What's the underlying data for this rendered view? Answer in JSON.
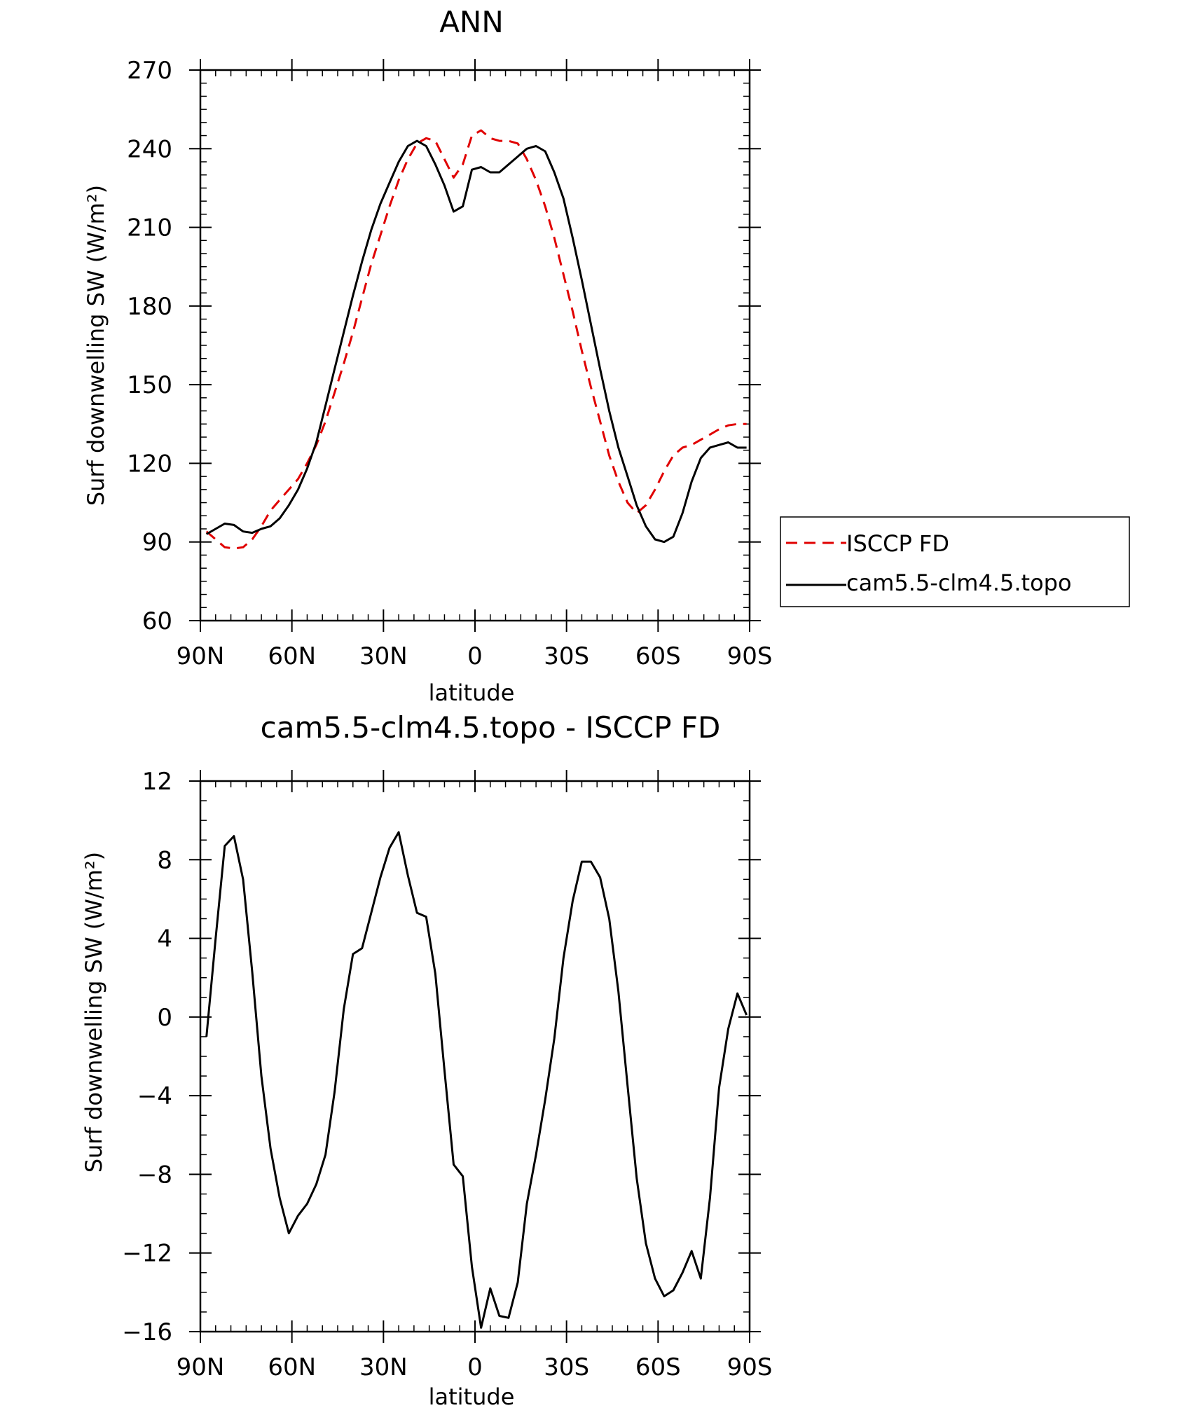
{
  "chart_data": [
    {
      "type": "line",
      "title": "ANN",
      "xlabel": "latitude",
      "ylabel": "Surf downwelling SW (W/m²)",
      "xlim": [
        90,
        -90
      ],
      "ylim": [
        60,
        270
      ],
      "xticks": [
        90,
        60,
        30,
        0,
        -30,
        -60,
        -90
      ],
      "xtick_labels": [
        "90N",
        "60N",
        "30N",
        "0",
        "30S",
        "60S",
        "90S"
      ],
      "yticks": [
        60,
        90,
        120,
        150,
        180,
        210,
        240,
        270
      ],
      "ytick_labels": [
        "60",
        "90",
        "120",
        "150",
        "180",
        "210",
        "240",
        "270"
      ],
      "legend_position": "right",
      "series": [
        {
          "name": "ISCCP FD",
          "color": "#e00000",
          "dash": "dashed",
          "x": [
            88,
            85,
            82,
            79,
            76,
            73,
            70,
            67,
            64,
            61,
            58,
            55,
            52,
            49,
            46,
            43,
            40,
            37,
            34,
            31,
            28,
            25,
            22,
            19,
            16,
            13,
            10,
            7,
            4,
            1,
            -2,
            -5,
            -8,
            -11,
            -14,
            -17,
            -20,
            -23,
            -26,
            -29,
            -32,
            -35,
            -38,
            -41,
            -44,
            -47,
            -50,
            -53,
            -56,
            -59,
            -62,
            -65,
            -68,
            -71,
            -74,
            -77,
            -80,
            -83,
            -86,
            -89
          ],
          "y": [
            94,
            91,
            88,
            87.5,
            88,
            91,
            96,
            102,
            106,
            110,
            114,
            120,
            127,
            136,
            147,
            158,
            170,
            183,
            196,
            207,
            218,
            228,
            236,
            242,
            244,
            243,
            236,
            229,
            234,
            245,
            247,
            244,
            243,
            243,
            242,
            236,
            228,
            218,
            206,
            192,
            178,
            163,
            149,
            136,
            123,
            113,
            105,
            101,
            104,
            110,
            117,
            123,
            126,
            127,
            129,
            131,
            133,
            134.5,
            135,
            135
          ]
        },
        {
          "name": "cam5.5-clm4.5.topo",
          "color": "#000000",
          "dash": "solid",
          "x": [
            88,
            85,
            82,
            79,
            76,
            73,
            70,
            67,
            64,
            61,
            58,
            55,
            52,
            49,
            46,
            43,
            40,
            37,
            34,
            31,
            28,
            25,
            22,
            19,
            16,
            13,
            10,
            7,
            4,
            1,
            -2,
            -5,
            -8,
            -11,
            -14,
            -17,
            -20,
            -23,
            -26,
            -29,
            -32,
            -35,
            -38,
            -41,
            -44,
            -47,
            -50,
            -53,
            -56,
            -59,
            -62,
            -65,
            -68,
            -71,
            -74,
            -77,
            -80,
            -83,
            -86,
            -89
          ],
          "y": [
            93,
            95,
            97,
            96.5,
            94,
            93.5,
            95,
            96,
            99,
            104,
            110,
            118,
            128,
            142,
            156,
            170,
            184,
            197,
            209,
            219,
            227,
            235,
            241,
            243,
            241,
            234,
            226,
            216,
            218,
            232,
            233,
            231,
            231,
            234,
            237,
            240,
            241,
            239,
            231,
            221,
            206,
            190,
            173,
            156,
            140,
            126,
            115,
            104,
            96,
            91,
            90,
            92,
            101,
            113,
            122,
            126,
            127,
            128,
            126,
            126
          ]
        }
      ]
    },
    {
      "type": "line",
      "title": "cam5.5-clm4.5.topo  -  ISCCP FD",
      "xlabel": "latitude",
      "ylabel": "Surf downwelling SW (W/m²)",
      "xlim": [
        90,
        -90
      ],
      "ylim": [
        -16,
        12
      ],
      "xticks": [
        90,
        60,
        30,
        0,
        -30,
        -60,
        -90
      ],
      "xtick_labels": [
        "90N",
        "60N",
        "30N",
        "0",
        "30S",
        "60S",
        "90S"
      ],
      "yticks": [
        -16,
        -12,
        -8,
        -4,
        0,
        4,
        8,
        12
      ],
      "ytick_labels": [
        "−16",
        "−12",
        "−8",
        "−4",
        "0",
        "4",
        "8",
        "12"
      ],
      "series": [
        {
          "color": "#000000",
          "dash": "solid",
          "x": [
            88,
            85,
            82,
            79,
            76,
            73,
            70,
            67,
            64,
            61,
            58,
            55,
            52,
            49,
            46,
            43,
            40,
            37,
            34,
            31,
            28,
            25,
            22,
            19,
            16,
            13,
            10,
            7,
            4,
            1,
            -2,
            -5,
            -8,
            -11,
            -14,
            -17,
            -20,
            -23,
            -26,
            -29,
            -32,
            -35,
            -38,
            -41,
            -44,
            -47,
            -50,
            -53,
            -56,
            -59,
            -62,
            -65,
            -68,
            -71,
            -74,
            -77,
            -80,
            -83,
            -86,
            -89
          ],
          "y": [
            -1,
            4,
            8.7,
            9.2,
            7,
            2.3,
            -3,
            -6.7,
            -9.2,
            -11,
            -10.1,
            -9.5,
            -8.5,
            -7,
            -3.8,
            0.4,
            3.2,
            3.5,
            5.3,
            7.1,
            8.6,
            9.4,
            7.2,
            5.3,
            5.1,
            2.2,
            -2.7,
            -7.5,
            -8.1,
            -12.7,
            -15.8,
            -13.8,
            -15.2,
            -15.3,
            -13.5,
            -9.5,
            -7,
            -4.2,
            -1.1,
            3,
            5.9,
            7.9,
            7.9,
            7.1,
            5,
            1.3,
            -3.5,
            -8.2,
            -11.5,
            -13.3,
            -14.2,
            -13.9,
            -13,
            -11.9,
            -13.3,
            -9.2,
            -3.6,
            -0.6,
            1.2,
            0.1
          ]
        }
      ]
    }
  ],
  "legend": {
    "entries": [
      {
        "label": "ISCCP FD",
        "color": "#e00000",
        "dash": "dashed"
      },
      {
        "label": "cam5.5-clm4.5.topo",
        "color": "#000000",
        "dash": "solid"
      }
    ]
  }
}
